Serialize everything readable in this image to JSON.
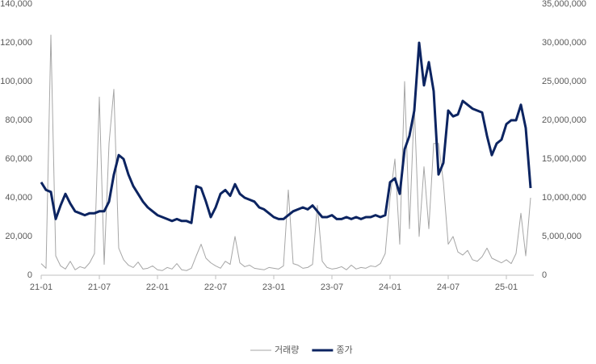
{
  "chart_data": {
    "type": "line",
    "categories": [
      "21-01",
      null,
      null,
      null,
      null,
      null,
      null,
      null,
      null,
      null,
      null,
      null,
      "21-07",
      null,
      null,
      null,
      null,
      null,
      null,
      null,
      null,
      null,
      null,
      null,
      "22-01",
      null,
      null,
      null,
      null,
      null,
      null,
      null,
      null,
      null,
      null,
      null,
      "22-07",
      null,
      null,
      null,
      null,
      null,
      null,
      null,
      null,
      null,
      null,
      null,
      "23-01",
      null,
      null,
      null,
      null,
      null,
      null,
      null,
      null,
      null,
      null,
      null,
      "23-07",
      null,
      null,
      null,
      null,
      null,
      null,
      null,
      null,
      null,
      null,
      null,
      "24-01",
      null,
      null,
      null,
      null,
      null,
      null,
      null,
      null,
      null,
      null,
      null,
      "24-07",
      null,
      null,
      null,
      null,
      null,
      null,
      null,
      null,
      null,
      null,
      null,
      "25-01",
      null,
      null,
      null,
      null,
      null
    ],
    "series": [
      {
        "name": "거래량",
        "color": "#a6a6a6",
        "axis": "y2",
        "values": [
          1500000,
          900000,
          31000000,
          2500000,
          1200000,
          800000,
          1800000,
          700000,
          1100000,
          900000,
          1600000,
          2800000,
          23000000,
          1400000,
          17000000,
          24000000,
          3500000,
          2000000,
          1300000,
          1000000,
          1700000,
          800000,
          900000,
          1200000,
          700000,
          600000,
          1000000,
          800000,
          1500000,
          700000,
          600000,
          900000,
          2500000,
          4000000,
          2200000,
          1600000,
          1200000,
          900000,
          1800000,
          1400000,
          5000000,
          1600000,
          1100000,
          1300000,
          900000,
          800000,
          700000,
          1000000,
          900000,
          800000,
          1200000,
          11000000,
          1500000,
          1300000,
          900000,
          1000000,
          1400000,
          9000000,
          1800000,
          1000000,
          800000,
          900000,
          1100000,
          700000,
          1300000,
          800000,
          1000000,
          900000,
          1200000,
          1100000,
          1500000,
          2800000,
          10000000,
          15000000,
          4000000,
          25000000,
          6000000,
          22000000,
          5000000,
          14000000,
          6000000,
          17000000,
          17000000,
          12000000,
          4000000,
          5000000,
          3000000,
          2600000,
          3200000,
          2000000,
          1800000,
          2400000,
          3500000,
          2200000,
          1900000,
          1600000,
          2000000,
          1500000,
          2800000,
          8000000,
          2500000,
          10000000
        ]
      },
      {
        "name": "종가",
        "color": "#0c2461",
        "values": [
          48000,
          44000,
          43000,
          29000,
          36000,
          42000,
          37000,
          33000,
          32000,
          31000,
          32000,
          32000,
          33000,
          33000,
          38000,
          52000,
          62000,
          60000,
          52000,
          46000,
          42000,
          38000,
          35000,
          33000,
          31000,
          30000,
          29000,
          28000,
          29000,
          28000,
          28000,
          27000,
          46000,
          45000,
          38000,
          30000,
          35000,
          42000,
          44000,
          41000,
          47000,
          42000,
          40000,
          39000,
          38000,
          35000,
          34000,
          32000,
          30000,
          29000,
          29000,
          31000,
          33000,
          34000,
          35000,
          34000,
          36000,
          33000,
          30000,
          30000,
          31000,
          29000,
          29000,
          30000,
          29000,
          30000,
          29000,
          30000,
          30000,
          31000,
          30000,
          31000,
          48000,
          50000,
          42000,
          65000,
          72000,
          85000,
          120000,
          98000,
          110000,
          95000,
          52000,
          58000,
          85000,
          82000,
          83000,
          90000,
          88000,
          86000,
          85000,
          84000,
          72000,
          62000,
          68000,
          70000,
          78000,
          80000,
          80000,
          88000,
          76000,
          45000
        ]
      }
    ],
    "ylim": [
      0,
      140000
    ],
    "yticks": [
      0,
      {
        "value": 20000,
        "label": "20,000"
      },
      {
        "value": 40000,
        "label": "40,000"
      },
      {
        "value": 60000,
        "label": "60,000"
      },
      {
        "value": 80000,
        "label": "80,000"
      },
      {
        "value": 100000,
        "label": "100,000"
      },
      {
        "value": 120000,
        "label": "120,000"
      },
      {
        "value": 140000,
        "label": "140,000"
      }
    ],
    "y2lim": [
      0,
      35000000
    ],
    "y2ticks": [
      0,
      {
        "value": 5000000,
        "label": "5,000,000"
      },
      {
        "value": 10000000,
        "label": "10,000,000"
      },
      {
        "value": 15000000,
        "label": "15,000,000"
      },
      {
        "value": 20000000,
        "label": "20,000,000"
      },
      {
        "value": 25000000,
        "label": "25,000,000"
      },
      {
        "value": 30000000,
        "label": "30,000,000"
      },
      {
        "value": 35000000,
        "label": "35,000,000"
      }
    ],
    "legend": "bottom"
  }
}
